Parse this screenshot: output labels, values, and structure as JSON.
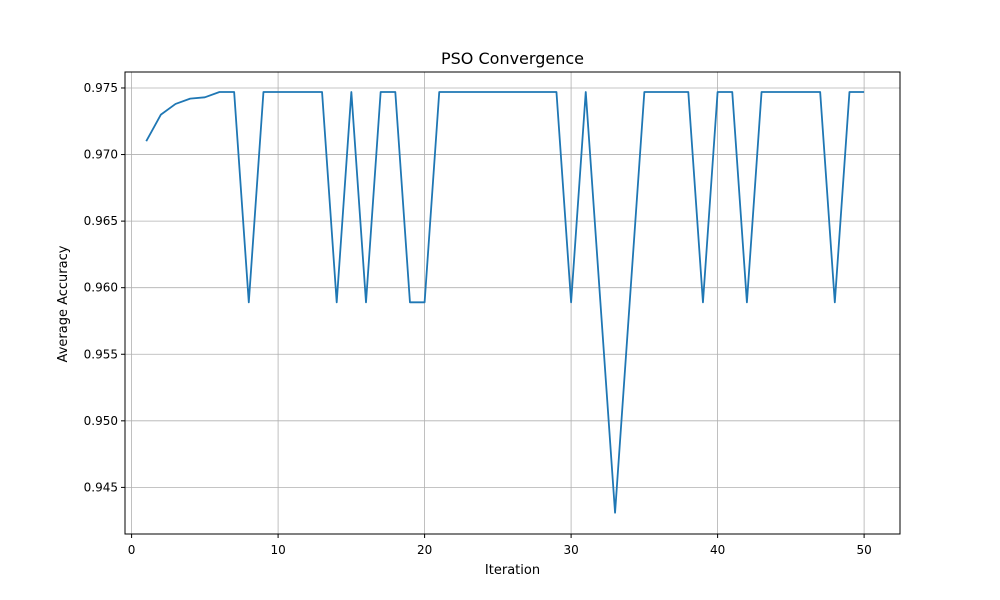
{
  "chart_data": {
    "type": "line",
    "title": "PSO Convergence",
    "xlabel": "Iteration",
    "ylabel": "Average Accuracy",
    "xlim": [
      -0.45,
      52.45
    ],
    "ylim": [
      0.9415,
      0.9762
    ],
    "xticks": [
      0,
      10,
      20,
      30,
      40,
      50
    ],
    "xtick_labels": [
      "0",
      "10",
      "20",
      "30",
      "40",
      "50"
    ],
    "yticks": [
      0.945,
      0.95,
      0.955,
      0.96,
      0.965,
      0.97,
      0.975
    ],
    "ytick_labels": [
      "0.945",
      "0.950",
      "0.955",
      "0.960",
      "0.965",
      "0.970",
      "0.975"
    ],
    "grid": true,
    "series": [
      {
        "color": "#1f77b4",
        "x": [
          1,
          2,
          3,
          4,
          5,
          6,
          7,
          8,
          9,
          10,
          11,
          12,
          13,
          14,
          15,
          16,
          17,
          18,
          19,
          20,
          21,
          22,
          23,
          24,
          25,
          26,
          27,
          28,
          29,
          30,
          31,
          32,
          33,
          34,
          35,
          36,
          37,
          38,
          39,
          40,
          41,
          42,
          43,
          44,
          45,
          46,
          47,
          48,
          49,
          50
        ],
        "values": [
          0.971,
          0.973,
          0.9738,
          0.9742,
          0.9743,
          0.9747,
          0.9747,
          0.9589,
          0.9747,
          0.9747,
          0.9747,
          0.9747,
          0.9747,
          0.9589,
          0.9747,
          0.9589,
          0.9747,
          0.9747,
          0.9589,
          0.9589,
          0.9747,
          0.9747,
          0.9747,
          0.9747,
          0.9747,
          0.9747,
          0.9747,
          0.9747,
          0.9747,
          0.9589,
          0.9747,
          0.9589,
          0.9431,
          0.9589,
          0.9747,
          0.9747,
          0.9747,
          0.9747,
          0.9589,
          0.9747,
          0.9747,
          0.9589,
          0.9747,
          0.9747,
          0.9747,
          0.9747,
          0.9747,
          0.9589,
          0.9747,
          0.9747
        ]
      }
    ]
  }
}
